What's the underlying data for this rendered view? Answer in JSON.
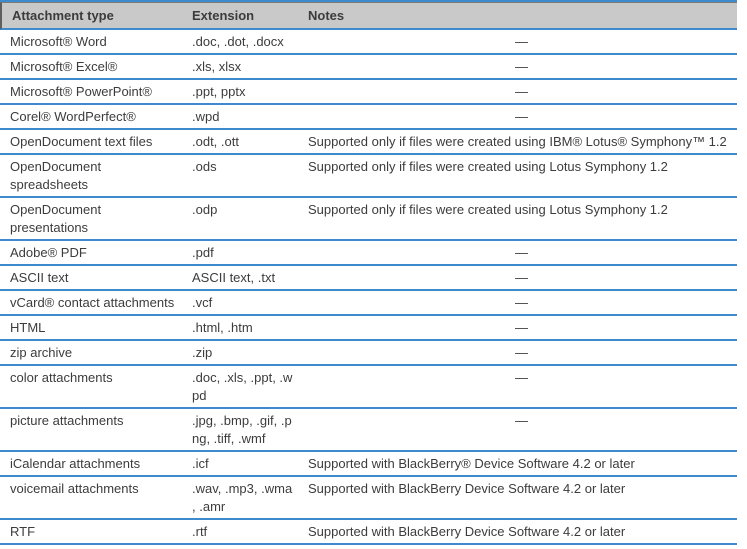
{
  "colors": {
    "divider_blue": "#3d8bcd",
    "header_bg": "#c9c9c9",
    "header_border_dark": "#7b7b7b",
    "text": "#3c3c3c"
  },
  "table": {
    "no_notes_marker": "—",
    "columns": [
      {
        "label": "Attachment type"
      },
      {
        "label": "Extension"
      },
      {
        "label": "Notes"
      }
    ],
    "rows": [
      {
        "type": "Microsoft® Word",
        "extension": ".doc, .dot, .docx",
        "notes": "—"
      },
      {
        "type": "Microsoft® Excel®",
        "extension": ".xls, xlsx",
        "notes": "—"
      },
      {
        "type": "Microsoft® PowerPoint®",
        "extension": ".ppt, pptx",
        "notes": "—"
      },
      {
        "type": "Corel® WordPerfect®",
        "extension": ".wpd",
        "notes": "—"
      },
      {
        "type": "OpenDocument text files",
        "extension": ".odt, .ott",
        "notes": "Supported only if files were created using IBM® Lotus® Symphony™ 1.2"
      },
      {
        "type": "OpenDocument\nspreadsheets",
        "extension": ".ods",
        "notes": "Supported only if files were created using Lotus Symphony 1.2"
      },
      {
        "type": "OpenDocument\npresentations",
        "extension": ".odp",
        "notes": "Supported only if files were created using Lotus Symphony 1.2"
      },
      {
        "type": "Adobe® PDF",
        "extension": ".pdf",
        "notes": "—"
      },
      {
        "type": "ASCII text",
        "extension": "ASCII text, .txt",
        "notes": "—"
      },
      {
        "type": "vCard® contact attachments",
        "extension": ".vcf",
        "notes": "—"
      },
      {
        "type": "HTML",
        "extension": ".html, .htm",
        "notes": "—"
      },
      {
        "type": "zip archive",
        "extension": ".zip",
        "notes": "—"
      },
      {
        "type": "color attachments",
        "extension": ".doc, .xls, .ppt, .w\npd",
        "notes": "—"
      },
      {
        "type": "picture attachments",
        "extension": ".jpg, .bmp, .gif, .p\nng, .tiff, .wmf",
        "notes": "—"
      },
      {
        "type": "iCalendar attachments",
        "extension": ".icf",
        "notes": "Supported with BlackBerry® Device Software 4.2 or later"
      },
      {
        "type": "voicemail attachments",
        "extension": ".wav, .mp3, .wma\n, .amr",
        "notes": "Supported with BlackBerry Device Software 4.2 or later"
      },
      {
        "type": "RTF",
        "extension": ".rtf",
        "notes": "Supported with BlackBerry Device Software 4.2 or later"
      }
    ]
  }
}
